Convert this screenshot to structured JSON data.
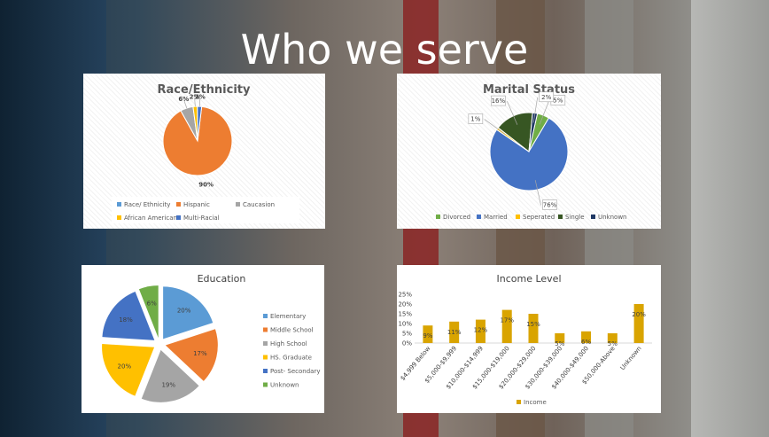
{
  "slide": {
    "title": "Who we serve"
  },
  "chart_data": [
    {
      "type": "pie",
      "title": "Race/Ethnicity",
      "legend": [
        "Race/ Ethnicity",
        "Hispanic",
        "Caucasion",
        "African American",
        "Multi-Racial"
      ],
      "slices": [
        {
          "name": "Hispanic",
          "value": 90,
          "label": "90%",
          "color": "#ED7D31"
        },
        {
          "name": "Caucasion",
          "value": 6,
          "label": "6%",
          "color": "#A5A5A5"
        },
        {
          "name": "African American",
          "value": 2,
          "label": "2%",
          "color": "#FFC000"
        },
        {
          "name": "Multi-Racial",
          "value": 2,
          "label": "2%",
          "color": "#4472C4"
        }
      ],
      "legend_colors": [
        "#5B9BD5",
        "#ED7D31",
        "#A5A5A5",
        "#FFC000",
        "#4472C4"
      ],
      "legend_position": "bottom"
    },
    {
      "type": "pie",
      "title": "Marital Status",
      "legend": [
        "Divorced",
        "Married",
        "Seperated",
        "Single",
        "Unknown"
      ],
      "slices": [
        {
          "name": "Divorced",
          "value": 5,
          "label": "5%",
          "color": "#70AD47"
        },
        {
          "name": "Married",
          "value": 76,
          "label": "76%",
          "color": "#4472C4"
        },
        {
          "name": "Seperated",
          "value": 1,
          "label": "1%",
          "color": "#FFC000"
        },
        {
          "name": "Single",
          "value": 16,
          "label": "16%",
          "color": "#375623"
        },
        {
          "name": "Unknown",
          "value": 2,
          "label": "2%",
          "color": "#1F3864"
        }
      ],
      "legend_position": "bottom"
    },
    {
      "type": "pie",
      "title": "Education",
      "legend": [
        "Elementary",
        "Middle School",
        "High School",
        "HS. Graduate",
        "Post- Secondary",
        "Unknown"
      ],
      "slices": [
        {
          "name": "Elementary",
          "value": 20,
          "label": "20%",
          "color": "#5B9BD5"
        },
        {
          "name": "Middle School",
          "value": 17,
          "label": "17%",
          "color": "#ED7D31"
        },
        {
          "name": "High School",
          "value": 19,
          "label": "19%",
          "color": "#A5A5A5"
        },
        {
          "name": "HS. Graduate",
          "value": 20,
          "label": "20%",
          "color": "#FFC000"
        },
        {
          "name": "Post- Secondary",
          "value": 18,
          "label": "18%",
          "color": "#4472C4"
        },
        {
          "name": "Unknown",
          "value": 6,
          "label": "6%",
          "color": "#70AD47"
        }
      ],
      "legend_position": "right"
    },
    {
      "type": "bar",
      "title": "Income Level",
      "categories": [
        "$4,999 Below",
        "$5,000-$9,999",
        "$10,000-$14,999",
        "$15,000-$19,000",
        "$20,000-$29,000",
        "$30,000-$39,000",
        "$40,000-$49,000",
        "$50,000-Above",
        "Unknown"
      ],
      "series": [
        {
          "name": "Income",
          "values": [
            9,
            11,
            12,
            17,
            15,
            5,
            6,
            5,
            20
          ],
          "labels": [
            "9%",
            "11%",
            "12%",
            "17%",
            "15%",
            "5%",
            "6%",
            "5%",
            "20%"
          ],
          "color": "#D9A400"
        }
      ],
      "yticks": [
        "0%",
        "5%",
        "10%",
        "15%",
        "20%",
        "25%"
      ],
      "ylim": [
        0,
        25
      ],
      "legend_position": "bottom"
    }
  ]
}
